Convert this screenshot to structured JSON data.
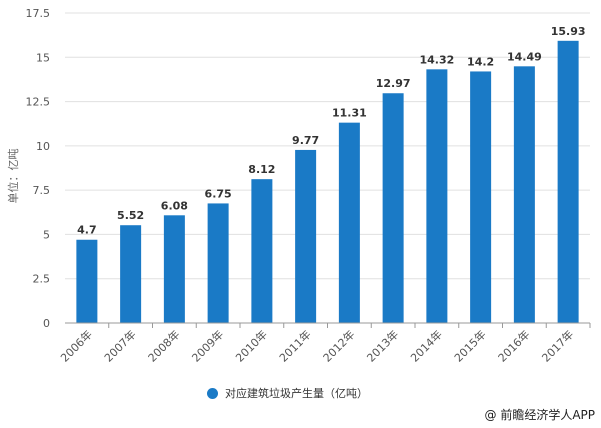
{
  "chart_data": {
    "type": "bar",
    "categories": [
      "2006年",
      "2007年",
      "2008年",
      "2009年",
      "2010年",
      "2011年",
      "2012年",
      "2013年",
      "2014年",
      "2015年",
      "2016年",
      "2017年"
    ],
    "series": [
      {
        "name": "对应建筑垃圾产生量（亿吨）",
        "values": [
          4.7,
          5.52,
          6.08,
          6.75,
          8.12,
          9.77,
          11.31,
          12.97,
          14.32,
          14.2,
          14.49,
          15.93
        ]
      }
    ],
    "value_labels": [
      "4.7",
      "5.52",
      "6.08",
      "6.75",
      "8.12",
      "9.77",
      "11.31",
      "12.97",
      "14.32",
      "14.2",
      "14.49",
      "15.93"
    ],
    "ylabel": "单位：亿吨",
    "ylim": [
      0,
      17.5
    ],
    "yticks": [
      "0",
      "2.5",
      "5",
      "7.5",
      "10",
      "12.5",
      "15",
      "17.5"
    ],
    "grid": true,
    "legend_position": "bottom",
    "color": "#1a7ac6"
  },
  "footer": "@ 前瞻经济学人APP"
}
